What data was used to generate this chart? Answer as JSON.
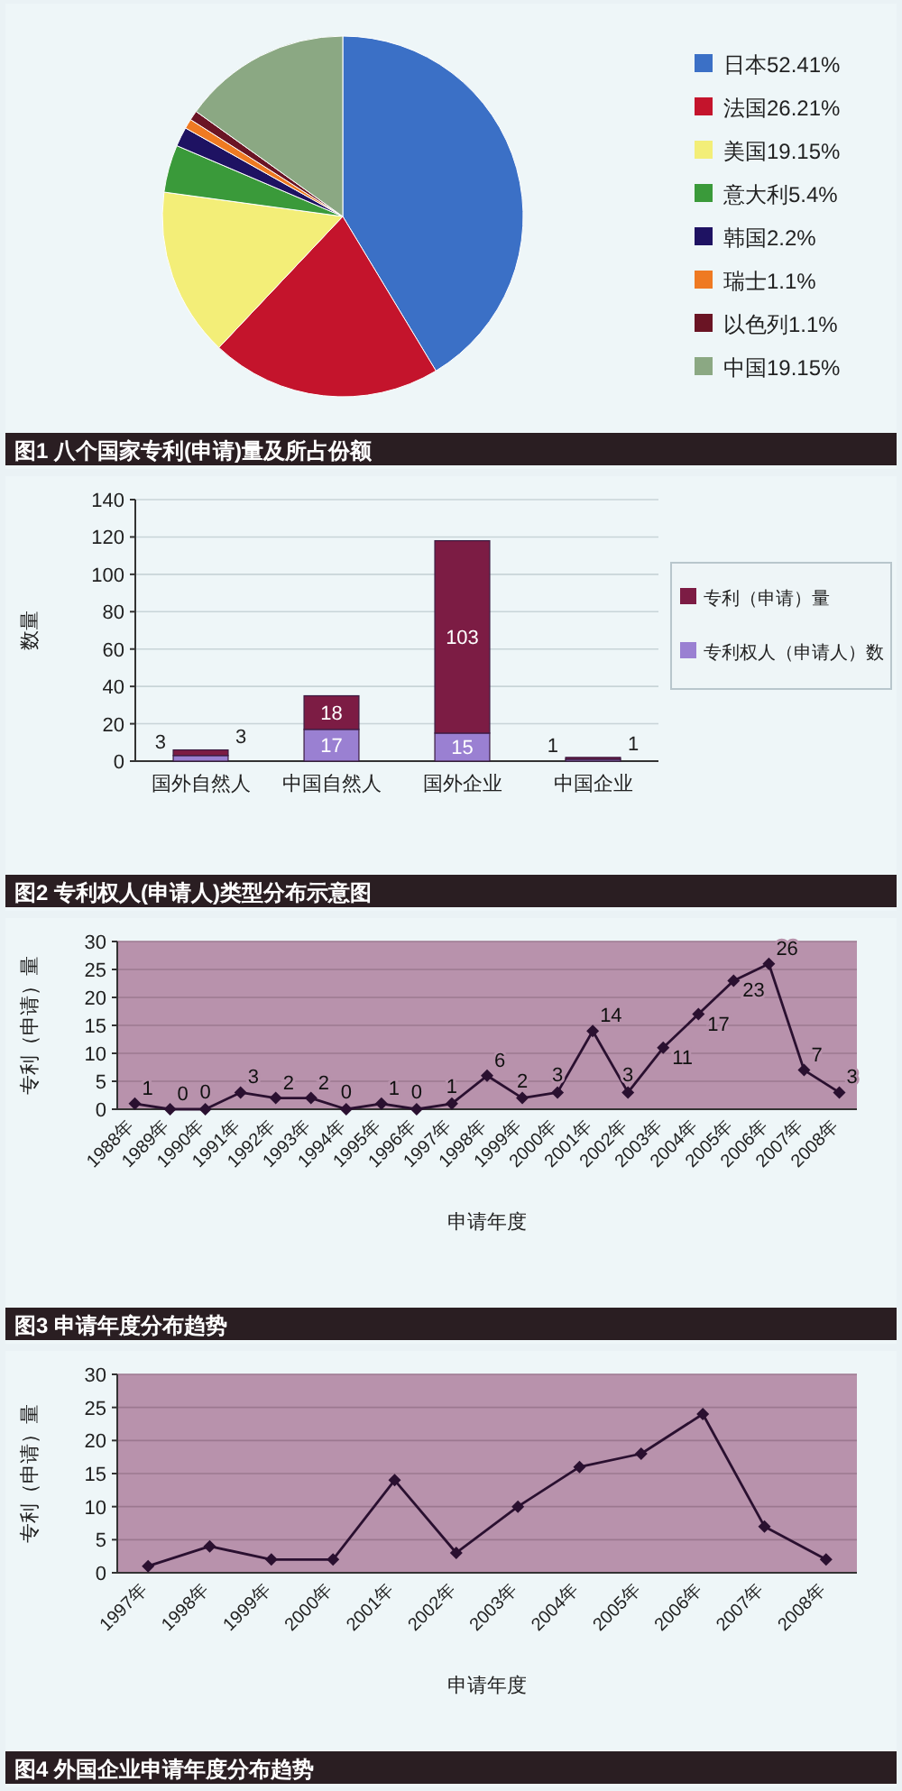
{
  "chart_data": [
    {
      "type": "pie",
      "title": "图1 八个国家专利(申请)量及所占份额",
      "categories": [
        "日本52.41%",
        "法国26.21%",
        "美国19.15%",
        "意大利5.4%",
        "韩国2.2%",
        "瑞士1.1%",
        "以色列1.1%",
        "中国19.15%"
      ],
      "values": [
        52.41,
        26.21,
        19.15,
        5.4,
        2.2,
        1.1,
        1.1,
        19.15
      ],
      "colors": [
        "#3b70c6",
        "#c4142c",
        "#f3ee78",
        "#3a9a3a",
        "#1e1262",
        "#ef7a22",
        "#6a1424",
        "#8ba883"
      ],
      "legend": "right"
    },
    {
      "type": "bar",
      "title": "图2 专利权人(申请人)类型分布示意图",
      "ylabel": "数量",
      "categories": [
        "国外自然人",
        "中国自然人",
        "国外企业",
        "中国企业"
      ],
      "stacked": true,
      "series": [
        {
          "name": "专利权人（申请人）数",
          "color": "#9a80d2",
          "values": [
            3,
            17,
            15,
            1
          ]
        },
        {
          "name": "专利（申请）量",
          "color": "#7c1c44",
          "values": [
            3,
            18,
            103,
            1
          ]
        }
      ],
      "ylim": [
        0,
        140
      ],
      "yticks": [
        0,
        20,
        40,
        60,
        80,
        100,
        120,
        140
      ],
      "grid": "y",
      "legend": "right",
      "data_labels": true
    },
    {
      "type": "line",
      "title": "图3 申请年度分布趋势",
      "xlabel": "申请年度",
      "ylabel": "专利（申请）量",
      "categories": [
        "1988年",
        "1989年",
        "1990年",
        "1991年",
        "1992年",
        "1993年",
        "1994年",
        "1995年",
        "1996年",
        "1997年",
        "1998年",
        "1999年",
        "2000年",
        "2001年",
        "2002年",
        "2003年",
        "2004年",
        "2005年",
        "2006年",
        "2007年",
        "2008年"
      ],
      "series": [
        {
          "color": "#2a1030",
          "values": [
            1,
            0,
            0,
            3,
            2,
            2,
            0,
            1,
            0,
            1,
            6,
            2,
            3,
            14,
            3,
            11,
            17,
            23,
            26,
            7,
            3
          ]
        }
      ],
      "ylim": [
        0,
        30
      ],
      "yticks": [
        0,
        5,
        10,
        15,
        20,
        25,
        30
      ],
      "grid": "y",
      "marker": "diamond",
      "line_style": "solid",
      "data_labels": true
    },
    {
      "type": "line",
      "title": "图4 外国企业申请年度分布趋势",
      "xlabel": "申请年度",
      "ylabel": "专利（申请）量",
      "categories": [
        "1997年",
        "1998年",
        "1999年",
        "2000年",
        "2001年",
        "2002年",
        "2003年",
        "2004年",
        "2005年",
        "2006年",
        "2007年",
        "2008年"
      ],
      "series": [
        {
          "color": "#2a1030",
          "values": [
            1,
            4,
            2,
            2,
            14,
            3,
            10,
            16,
            18,
            24,
            7,
            2
          ]
        }
      ],
      "ylim": [
        0,
        30
      ],
      "yticks": [
        0,
        5,
        10,
        15,
        20,
        25,
        30
      ],
      "grid": "y",
      "marker": "diamond",
      "line_style": "solid"
    }
  ]
}
